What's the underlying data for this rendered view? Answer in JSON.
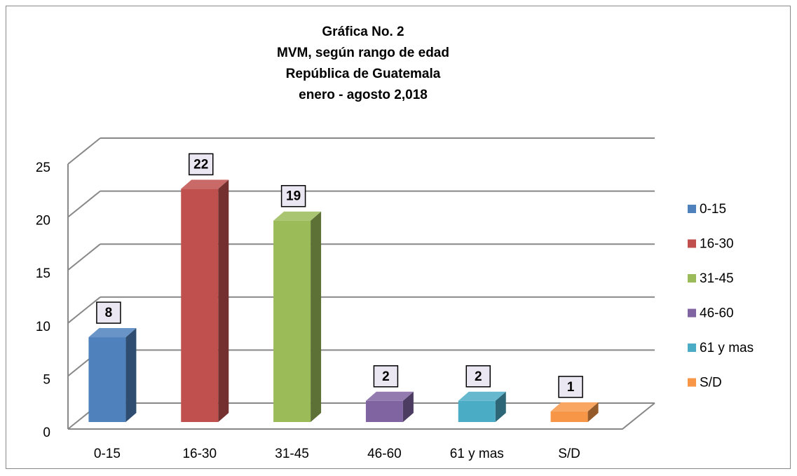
{
  "chart_data": {
    "type": "bar3d",
    "title": [
      "Gráfica No. 2",
      "MVM, según rango de edad",
      "República de Guatemala",
      "enero - agosto 2,018"
    ],
    "categories": [
      "0-15",
      "16-30",
      "31-45",
      "46-60",
      "61 y mas",
      "S/D"
    ],
    "values": [
      8,
      22,
      19,
      2,
      2,
      1
    ],
    "colors": [
      "#4f81bd",
      "#c0504d",
      "#9bbb59",
      "#8064a2",
      "#4bacc6",
      "#f79646"
    ],
    "ylim": [
      0,
      25
    ],
    "yticks": [
      0,
      5,
      10,
      15,
      20,
      25
    ],
    "grid": true,
    "legend": "right"
  }
}
